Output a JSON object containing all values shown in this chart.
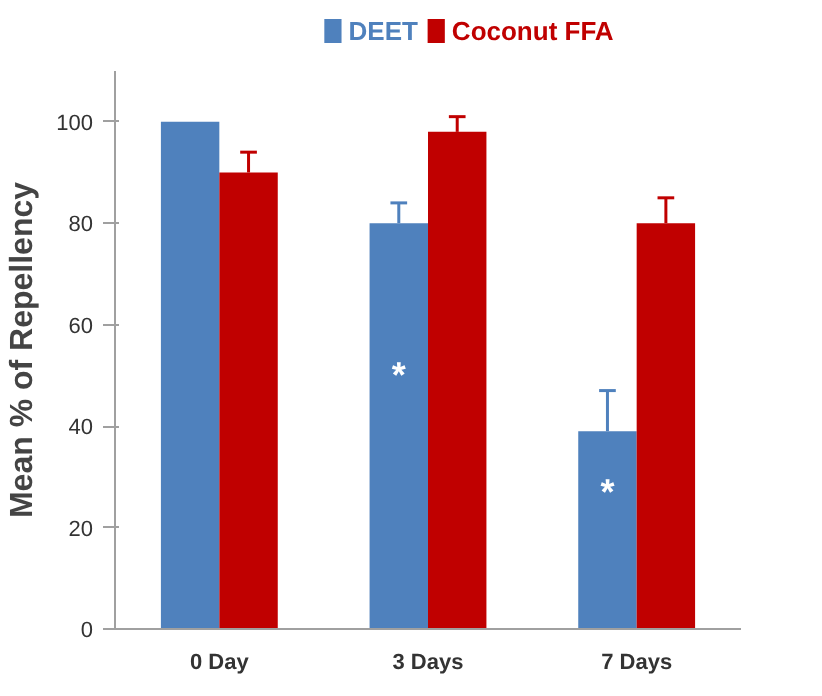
{
  "chart_data": {
    "type": "bar",
    "ylabel": "Mean % of Repellency",
    "categories": [
      "0 Day",
      "3 Days",
      "7 Days"
    ],
    "series": [
      {
        "name": "DEET",
        "color": "#4f81bd",
        "values": [
          100,
          80,
          39
        ],
        "errors": [
          null,
          [
            80,
            84
          ],
          [
            39,
            47
          ]
        ]
      },
      {
        "name": "Coconut FFA",
        "color": "#c00000",
        "values": [
          90,
          98,
          80
        ],
        "errors": [
          [
            90,
            94
          ],
          [
            98,
            101
          ],
          [
            80,
            85
          ]
        ]
      }
    ],
    "ylim": [
      0,
      110
    ],
    "yticks": [
      0,
      20,
      40,
      60,
      80,
      100
    ],
    "grid": false,
    "legend": "top",
    "annotations": [
      {
        "text": "*",
        "x": "3 Days",
        "y": 50
      },
      {
        "text": "*",
        "x": "7 Days",
        "y": 27
      }
    ]
  }
}
